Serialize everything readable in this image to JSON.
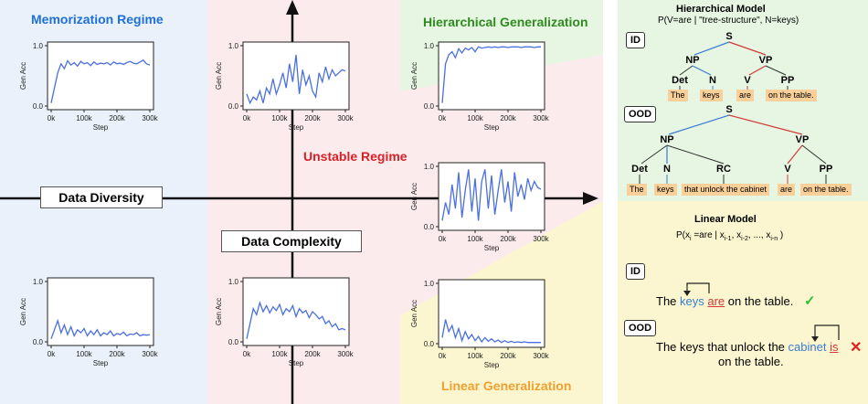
{
  "colors": {
    "memorization_bg": "#eaf1fb",
    "unstable_bg": "#fcebec",
    "hierarchical_bg": "#e6f6e2",
    "linear_bg": "#fbf6cf",
    "panel_bg": "#f4f1d7",
    "memorization_title": "#1e6fd9",
    "unstable_title": "#d52128",
    "hierarchical_title": "#2e8b1e",
    "linear_title": "#f0a030",
    "line": "#4a6fe0",
    "word_highlight": "#f9cf9a",
    "blue_edge": "#3a7bd5",
    "red_edge": "#d23a3a",
    "check": "#2fbf2f",
    "cross": "#e02020"
  },
  "regions": {
    "memorization": {
      "title": "Memorization Regime"
    },
    "unstable": {
      "title": "Unstable Regime"
    },
    "hierarchical": {
      "title": "Hierarchical Generalization"
    },
    "linear": {
      "title": "Linear Generalization"
    }
  },
  "axes": {
    "x_label": "Data Diversity",
    "y_label": "Data Complexity"
  },
  "plot_axis": {
    "ylabel": "Gen Acc",
    "xlabel": "Step",
    "xticks": [
      "0k",
      "100k",
      "200k",
      "300k"
    ],
    "yticks": [
      "0.0",
      "1.0"
    ]
  },
  "chart_data": [
    {
      "type": "line",
      "name": "memorization-top",
      "xlabel": "Step",
      "ylabel": "Gen Acc",
      "ylim": [
        0,
        1
      ],
      "xlim": [
        0,
        300
      ],
      "x": [
        0,
        10,
        20,
        30,
        40,
        50,
        60,
        70,
        80,
        90,
        100,
        110,
        120,
        130,
        140,
        150,
        160,
        170,
        180,
        190,
        200,
        210,
        220,
        230,
        240,
        250,
        260,
        270,
        280,
        290,
        300
      ],
      "values": [
        0.05,
        0.3,
        0.55,
        0.7,
        0.62,
        0.75,
        0.68,
        0.72,
        0.66,
        0.74,
        0.7,
        0.72,
        0.67,
        0.73,
        0.69,
        0.71,
        0.7,
        0.72,
        0.68,
        0.73,
        0.7,
        0.71,
        0.69,
        0.72,
        0.74,
        0.71,
        0.7,
        0.73,
        0.76,
        0.7,
        0.68
      ]
    },
    {
      "type": "line",
      "name": "unstable-top",
      "xlabel": "Step",
      "ylabel": "Gen Acc",
      "ylim": [
        0,
        1
      ],
      "xlim": [
        0,
        300
      ],
      "x": [
        0,
        10,
        20,
        30,
        40,
        50,
        60,
        70,
        80,
        90,
        100,
        110,
        120,
        130,
        140,
        150,
        160,
        170,
        180,
        190,
        200,
        210,
        220,
        230,
        240,
        250,
        260,
        270,
        280,
        290,
        300
      ],
      "values": [
        0.2,
        0.05,
        0.15,
        0.1,
        0.25,
        0.05,
        0.3,
        0.2,
        0.45,
        0.2,
        0.35,
        0.55,
        0.3,
        0.7,
        0.4,
        0.85,
        0.2,
        0.6,
        0.35,
        0.5,
        0.25,
        0.15,
        0.55,
        0.4,
        0.65,
        0.45,
        0.6,
        0.5,
        0.55,
        0.6,
        0.58
      ]
    },
    {
      "type": "line",
      "name": "hierarchical",
      "xlabel": "Step",
      "ylabel": "Gen Acc",
      "ylim": [
        0,
        1
      ],
      "xlim": [
        0,
        300
      ],
      "x": [
        0,
        10,
        20,
        30,
        40,
        50,
        60,
        70,
        80,
        90,
        100,
        110,
        120,
        130,
        140,
        150,
        160,
        170,
        180,
        190,
        200,
        210,
        220,
        230,
        240,
        250,
        260,
        270,
        280,
        290,
        300
      ],
      "values": [
        0.05,
        0.7,
        0.85,
        0.9,
        0.8,
        0.95,
        0.88,
        0.96,
        0.93,
        0.97,
        0.9,
        0.98,
        0.96,
        0.97,
        0.98,
        0.97,
        0.98,
        0.97,
        0.98,
        0.98,
        0.97,
        0.98,
        0.98,
        0.98,
        0.97,
        0.98,
        0.98,
        0.98,
        0.97,
        0.98,
        0.98
      ]
    },
    {
      "type": "line",
      "name": "unstable-middle",
      "xlabel": "Step",
      "ylabel": "Gen Acc",
      "ylim": [
        0,
        1
      ],
      "xlim": [
        0,
        300
      ],
      "x": [
        0,
        10,
        20,
        30,
        40,
        50,
        60,
        70,
        80,
        90,
        100,
        110,
        120,
        130,
        140,
        150,
        160,
        170,
        180,
        190,
        200,
        210,
        220,
        230,
        240,
        250,
        260,
        270,
        280,
        290,
        300
      ],
      "values": [
        0.1,
        0.4,
        0.2,
        0.7,
        0.3,
        0.9,
        0.15,
        0.6,
        0.95,
        0.25,
        0.8,
        0.1,
        0.75,
        0.95,
        0.3,
        0.85,
        0.2,
        0.6,
        0.95,
        0.4,
        0.75,
        0.25,
        0.9,
        0.5,
        0.7,
        0.45,
        0.8,
        0.6,
        0.75,
        0.65,
        0.62
      ]
    },
    {
      "type": "line",
      "name": "memorization-bottom",
      "xlabel": "Step",
      "ylabel": "Gen Acc",
      "ylim": [
        0,
        1
      ],
      "xlim": [
        0,
        300
      ],
      "x": [
        0,
        10,
        20,
        30,
        40,
        50,
        60,
        70,
        80,
        90,
        100,
        110,
        120,
        130,
        140,
        150,
        160,
        170,
        180,
        190,
        200,
        210,
        220,
        230,
        240,
        250,
        260,
        270,
        280,
        290,
        300
      ],
      "values": [
        0.05,
        0.2,
        0.35,
        0.15,
        0.28,
        0.12,
        0.25,
        0.1,
        0.2,
        0.15,
        0.22,
        0.1,
        0.18,
        0.12,
        0.2,
        0.1,
        0.15,
        0.12,
        0.18,
        0.1,
        0.14,
        0.12,
        0.16,
        0.1,
        0.13,
        0.12,
        0.15,
        0.1,
        0.12,
        0.11,
        0.12
      ]
    },
    {
      "type": "line",
      "name": "unstable-bottom",
      "xlabel": "Step",
      "ylabel": "Gen Acc",
      "ylim": [
        0,
        1
      ],
      "xlim": [
        0,
        300
      ],
      "x": [
        0,
        10,
        20,
        30,
        40,
        50,
        60,
        70,
        80,
        90,
        100,
        110,
        120,
        130,
        140,
        150,
        160,
        170,
        180,
        190,
        200,
        210,
        220,
        230,
        240,
        250,
        260,
        270,
        280,
        290,
        300
      ],
      "values": [
        0.05,
        0.3,
        0.55,
        0.45,
        0.65,
        0.5,
        0.6,
        0.48,
        0.58,
        0.52,
        0.62,
        0.45,
        0.55,
        0.5,
        0.6,
        0.42,
        0.55,
        0.48,
        0.52,
        0.4,
        0.5,
        0.45,
        0.38,
        0.42,
        0.3,
        0.35,
        0.25,
        0.3,
        0.2,
        0.22,
        0.2
      ]
    },
    {
      "type": "line",
      "name": "linear",
      "xlabel": "Step",
      "ylabel": "Gen Acc",
      "ylim": [
        0,
        1
      ],
      "xlim": [
        0,
        300
      ],
      "x": [
        0,
        10,
        20,
        30,
        40,
        50,
        60,
        70,
        80,
        90,
        100,
        110,
        120,
        130,
        140,
        150,
        160,
        170,
        180,
        190,
        200,
        210,
        220,
        230,
        240,
        250,
        260,
        270,
        280,
        290,
        300
      ],
      "values": [
        0.1,
        0.4,
        0.2,
        0.3,
        0.1,
        0.25,
        0.05,
        0.2,
        0.08,
        0.15,
        0.05,
        0.12,
        0.03,
        0.1,
        0.04,
        0.08,
        0.03,
        0.06,
        0.02,
        0.05,
        0.02,
        0.04,
        0.02,
        0.03,
        0.02,
        0.03,
        0.02,
        0.02,
        0.02,
        0.02,
        0.02
      ]
    }
  ],
  "hierarchical_model": {
    "title": "Hierarchical Model",
    "subtitle": "P(V=are | \"tree-structure\", N=keys)",
    "id_tag": "ID",
    "ood_tag": "OOD",
    "id_tree": {
      "nodes": {
        "s": "S",
        "np": "NP",
        "vp": "VP",
        "det": "Det",
        "n": "N",
        "v": "V",
        "pp": "PP"
      },
      "words": [
        "The",
        "keys",
        "are",
        "on the table."
      ]
    },
    "ood_tree": {
      "nodes": {
        "s": "S",
        "np": "NP",
        "vp": "VP",
        "det": "Det",
        "n": "N",
        "rc": "RC",
        "v": "V",
        "pp": "PP"
      },
      "words": [
        "The",
        "keys",
        "that unlock the cabinet",
        "are",
        "on the table."
      ]
    }
  },
  "linear_model": {
    "title": "Linear Model",
    "formula_prefix": "P(x",
    "formula_sub_i": "i",
    "formula_mid": " =are | x",
    "formula_sub_1": "i-1",
    "formula_sep1": ", x",
    "formula_sub_2": "i-2",
    "formula_sep2": ", ..., x",
    "formula_sub_n": "i-n",
    "formula_suffix": " )",
    "id_tag": "ID",
    "ood_tag": "OOD",
    "id_sentence": {
      "pre": "The ",
      "noun": "keys",
      "space": " ",
      "verb": "are",
      "post": " on the table."
    },
    "ood_sentence": {
      "pre": "The keys that unlock the ",
      "noun": "cabinet",
      "space": " ",
      "verb": "is",
      "line2": "on the table."
    },
    "check_mark": "✓",
    "cross_mark": "✕"
  }
}
